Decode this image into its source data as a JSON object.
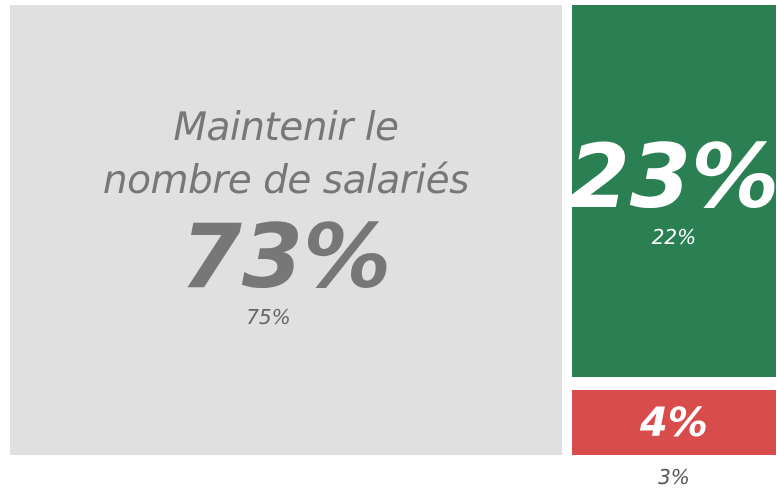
{
  "chart_data": {
    "type": "treemap",
    "categories": [
      "Maintenir le nombre de salariés",
      null,
      null
    ],
    "values": [
      73,
      23,
      4
    ],
    "value_labels": [
      "73%",
      "23%",
      "4%"
    ],
    "comparison_values": [
      75,
      22,
      3
    ],
    "comparison_labels": [
      "75%",
      "22%",
      "3%"
    ],
    "colors": [
      "#e0e0e0",
      "#2a7f53",
      "#d94c4c"
    ],
    "text_colors": [
      "#777777",
      "#ffffff",
      "#ffffff"
    ]
  }
}
